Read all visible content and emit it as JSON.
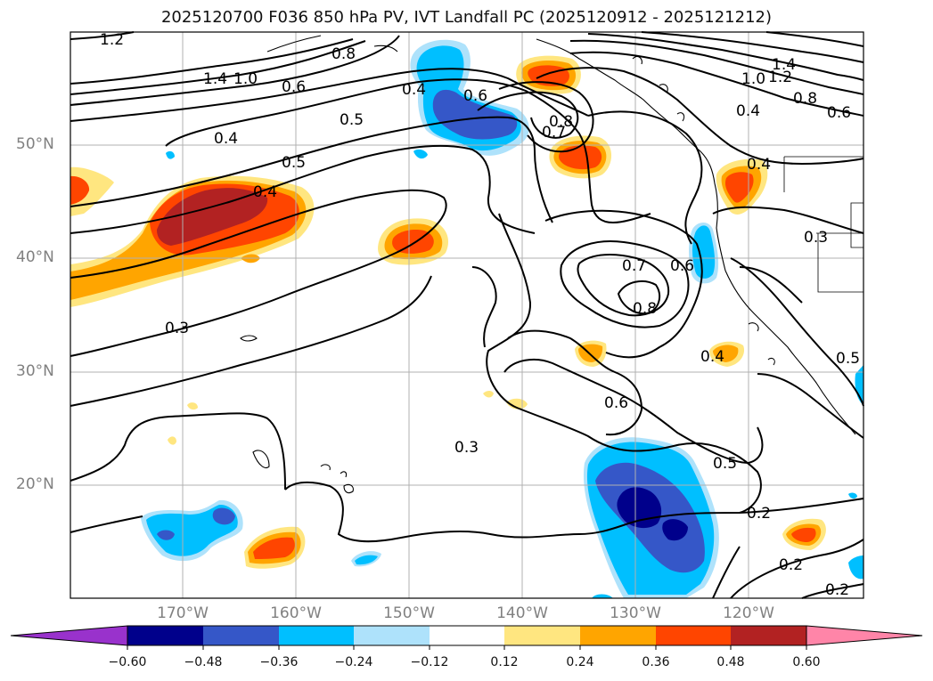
{
  "title": "2025120700 F036 850 hPa PV, IVT Landfall PC (2025120912 - 2025121212)",
  "lat_labels": [
    "50°N",
    "40°N",
    "30°N",
    "20°N"
  ],
  "lon_labels": [
    "170°W",
    "160°W",
    "150°W",
    "140°W",
    "130°W",
    "120°W"
  ],
  "contour_labels": [
    "1.2",
    "1.4",
    "1.0",
    "0.8",
    "0.6",
    "0.5",
    "0.4",
    "0.5",
    "0.4",
    "0.4",
    "0.3",
    "0.6",
    "0.8",
    "0.7",
    "0.7",
    "0.6",
    "0.8",
    "0.4",
    "0.3",
    "0.6",
    "0.5",
    "0.3",
    "0.2",
    "0.2",
    "0.2",
    "0.4",
    "1.0",
    "1.2",
    "1.4",
    "0.8",
    "0.6",
    "0.4",
    "0.5"
  ],
  "colorbar": {
    "ticks": [
      "−0.60",
      "−0.48",
      "−0.36",
      "−0.24",
      "−0.12",
      "0.12",
      "0.24",
      "0.36",
      "0.48",
      "0.60"
    ],
    "colors": [
      "#9932cc",
      "#00008b",
      "#3557c8",
      "#00bfff",
      "#aee2fb",
      "#ffffff",
      "#ffe680",
      "#ffa500",
      "#ff4500",
      "#b22222",
      "#ff85a8"
    ]
  },
  "icons": [
    "map-plot",
    "colorbar"
  ]
}
